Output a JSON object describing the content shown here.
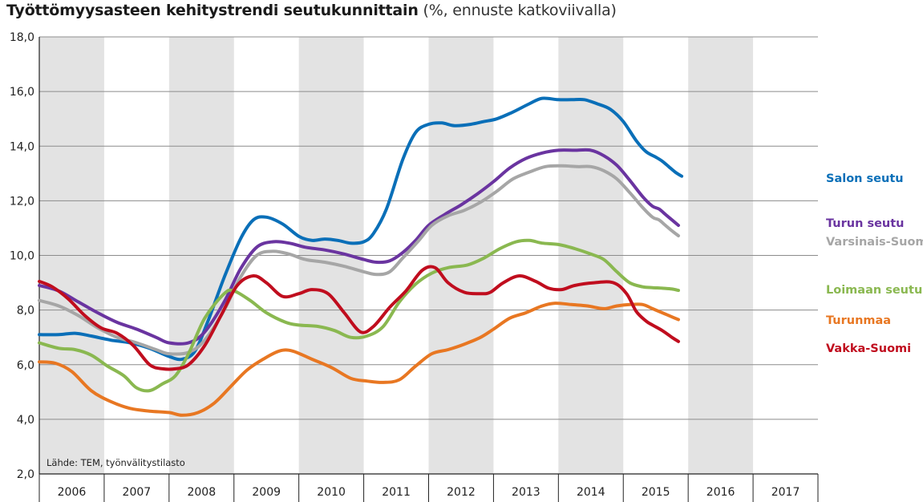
{
  "chart_data": {
    "type": "line",
    "title": "Työttömyysasteen kehitystrendi seutukunnittain",
    "subtitle": "(%, ennuste katkoviivalla)",
    "source": "Lähde: TEM, työnvälitystilasto",
    "ylim": [
      2,
      18
    ],
    "yticks": [
      "2,0",
      "4,0",
      "6,0",
      "8,0",
      "10,0",
      "12,0",
      "14,0",
      "16,0",
      "18,0"
    ],
    "ytick_values": [
      2,
      4,
      6,
      8,
      10,
      12,
      14,
      16,
      18
    ],
    "years": [
      "2006",
      "2007",
      "2008",
      "2009",
      "2010",
      "2011",
      "2012",
      "2013",
      "2014",
      "2015",
      "2016",
      "2017"
    ],
    "xlim": [
      2006.0,
      2018.0
    ],
    "forecast_from": 2017.45,
    "grid": true,
    "series": [
      {
        "name": "Salon seutu",
        "color": "#0a6fb8",
        "points": [
          [
            2006.0,
            7.1
          ],
          [
            2006.3,
            7.1
          ],
          [
            2006.55,
            7.15
          ],
          [
            2006.8,
            7.05
          ],
          [
            2007.1,
            6.9
          ],
          [
            2007.4,
            6.8
          ],
          [
            2007.7,
            6.6
          ],
          [
            2008.0,
            6.3
          ],
          [
            2008.2,
            6.2
          ],
          [
            2008.4,
            6.5
          ],
          [
            2008.6,
            7.6
          ],
          [
            2008.85,
            9.2
          ],
          [
            2009.1,
            10.6
          ],
          [
            2009.3,
            11.3
          ],
          [
            2009.5,
            11.4
          ],
          [
            2009.75,
            11.15
          ],
          [
            2010.0,
            10.7
          ],
          [
            2010.2,
            10.55
          ],
          [
            2010.4,
            10.6
          ],
          [
            2010.6,
            10.55
          ],
          [
            2010.8,
            10.45
          ],
          [
            2011.0,
            10.5
          ],
          [
            2011.15,
            10.8
          ],
          [
            2011.35,
            11.7
          ],
          [
            2011.6,
            13.5
          ],
          [
            2011.8,
            14.5
          ],
          [
            2012.0,
            14.8
          ],
          [
            2012.2,
            14.85
          ],
          [
            2012.4,
            14.75
          ],
          [
            2012.65,
            14.8
          ],
          [
            2012.85,
            14.9
          ],
          [
            2013.05,
            15.0
          ],
          [
            2013.3,
            15.25
          ],
          [
            2013.55,
            15.55
          ],
          [
            2013.75,
            15.75
          ],
          [
            2014.0,
            15.7
          ],
          [
            2014.2,
            15.7
          ],
          [
            2014.4,
            15.7
          ],
          [
            2014.6,
            15.55
          ],
          [
            2014.8,
            15.35
          ],
          [
            2015.0,
            14.9
          ],
          [
            2015.2,
            14.2
          ],
          [
            2015.35,
            13.8
          ],
          [
            2015.5,
            13.6
          ],
          [
            2015.6,
            13.45
          ],
          [
            2015.7,
            13.25
          ],
          [
            2015.8,
            13.05
          ],
          [
            2015.9,
            12.9
          ]
        ]
      },
      {
        "name": "Turun seutu",
        "color": "#6a34a0",
        "points": [
          [
            2006.0,
            8.9
          ],
          [
            2006.3,
            8.7
          ],
          [
            2006.6,
            8.3
          ],
          [
            2006.9,
            7.9
          ],
          [
            2007.2,
            7.55
          ],
          [
            2007.5,
            7.3
          ],
          [
            2007.8,
            7.0
          ],
          [
            2008.0,
            6.8
          ],
          [
            2008.3,
            6.8
          ],
          [
            2008.55,
            7.2
          ],
          [
            2008.85,
            8.3
          ],
          [
            2009.1,
            9.5
          ],
          [
            2009.35,
            10.3
          ],
          [
            2009.6,
            10.5
          ],
          [
            2009.85,
            10.45
          ],
          [
            2010.1,
            10.3
          ],
          [
            2010.4,
            10.2
          ],
          [
            2010.7,
            10.05
          ],
          [
            2011.0,
            9.85
          ],
          [
            2011.2,
            9.75
          ],
          [
            2011.4,
            9.8
          ],
          [
            2011.6,
            10.1
          ],
          [
            2011.8,
            10.55
          ],
          [
            2012.0,
            11.1
          ],
          [
            2012.25,
            11.5
          ],
          [
            2012.5,
            11.85
          ],
          [
            2012.75,
            12.25
          ],
          [
            2013.0,
            12.7
          ],
          [
            2013.25,
            13.2
          ],
          [
            2013.5,
            13.55
          ],
          [
            2013.75,
            13.75
          ],
          [
            2014.0,
            13.85
          ],
          [
            2014.25,
            13.85
          ],
          [
            2014.5,
            13.85
          ],
          [
            2014.7,
            13.65
          ],
          [
            2014.9,
            13.3
          ],
          [
            2015.1,
            12.75
          ],
          [
            2015.3,
            12.15
          ],
          [
            2015.45,
            11.8
          ],
          [
            2015.55,
            11.7
          ],
          [
            2015.65,
            11.5
          ],
          [
            2015.75,
            11.3
          ],
          [
            2015.85,
            11.1
          ]
        ]
      },
      {
        "name": "Varsinais-Suomi",
        "color": "#a6a6a6",
        "points": [
          [
            2006.0,
            8.35
          ],
          [
            2006.3,
            8.15
          ],
          [
            2006.6,
            7.8
          ],
          [
            2006.9,
            7.35
          ],
          [
            2007.2,
            7.0
          ],
          [
            2007.5,
            6.8
          ],
          [
            2007.8,
            6.55
          ],
          [
            2008.0,
            6.4
          ],
          [
            2008.3,
            6.45
          ],
          [
            2008.55,
            6.9
          ],
          [
            2008.85,
            8.0
          ],
          [
            2009.1,
            9.2
          ],
          [
            2009.35,
            10.0
          ],
          [
            2009.6,
            10.15
          ],
          [
            2009.85,
            10.05
          ],
          [
            2010.1,
            9.85
          ],
          [
            2010.4,
            9.75
          ],
          [
            2010.7,
            9.6
          ],
          [
            2011.0,
            9.4
          ],
          [
            2011.2,
            9.3
          ],
          [
            2011.4,
            9.4
          ],
          [
            2011.6,
            9.9
          ],
          [
            2011.85,
            10.55
          ],
          [
            2012.05,
            11.1
          ],
          [
            2012.3,
            11.45
          ],
          [
            2012.55,
            11.65
          ],
          [
            2012.8,
            11.95
          ],
          [
            2013.05,
            12.35
          ],
          [
            2013.3,
            12.8
          ],
          [
            2013.55,
            13.05
          ],
          [
            2013.8,
            13.25
          ],
          [
            2014.05,
            13.28
          ],
          [
            2014.3,
            13.25
          ],
          [
            2014.5,
            13.25
          ],
          [
            2014.7,
            13.1
          ],
          [
            2014.9,
            12.8
          ],
          [
            2015.1,
            12.3
          ],
          [
            2015.3,
            11.75
          ],
          [
            2015.45,
            11.4
          ],
          [
            2015.55,
            11.3
          ],
          [
            2015.65,
            11.1
          ],
          [
            2015.75,
            10.9
          ],
          [
            2015.85,
            10.72
          ]
        ]
      },
      {
        "name": "Loimaan seutu",
        "color": "#8ab850",
        "points": [
          [
            2006.0,
            6.8
          ],
          [
            2006.3,
            6.6
          ],
          [
            2006.55,
            6.55
          ],
          [
            2006.8,
            6.35
          ],
          [
            2007.05,
            5.95
          ],
          [
            2007.3,
            5.6
          ],
          [
            2007.5,
            5.15
          ],
          [
            2007.7,
            5.05
          ],
          [
            2007.9,
            5.3
          ],
          [
            2008.1,
            5.6
          ],
          [
            2008.3,
            6.4
          ],
          [
            2008.55,
            7.7
          ],
          [
            2008.85,
            8.6
          ],
          [
            2009.0,
            8.7
          ],
          [
            2009.25,
            8.35
          ],
          [
            2009.5,
            7.9
          ],
          [
            2009.8,
            7.55
          ],
          [
            2010.0,
            7.45
          ],
          [
            2010.3,
            7.4
          ],
          [
            2010.55,
            7.25
          ],
          [
            2010.8,
            7.0
          ],
          [
            2011.05,
            7.05
          ],
          [
            2011.3,
            7.4
          ],
          [
            2011.55,
            8.3
          ],
          [
            2011.8,
            8.95
          ],
          [
            2012.05,
            9.35
          ],
          [
            2012.3,
            9.55
          ],
          [
            2012.6,
            9.65
          ],
          [
            2012.85,
            9.9
          ],
          [
            2013.1,
            10.25
          ],
          [
            2013.35,
            10.5
          ],
          [
            2013.55,
            10.55
          ],
          [
            2013.75,
            10.45
          ],
          [
            2014.0,
            10.4
          ],
          [
            2014.25,
            10.25
          ],
          [
            2014.5,
            10.05
          ],
          [
            2014.7,
            9.85
          ],
          [
            2014.9,
            9.4
          ],
          [
            2015.1,
            9.0
          ],
          [
            2015.3,
            8.85
          ],
          [
            2015.45,
            8.82
          ],
          [
            2015.6,
            8.8
          ],
          [
            2015.75,
            8.77
          ],
          [
            2015.85,
            8.72
          ]
        ]
      },
      {
        "name": "Turunmaa",
        "color": "#e87722",
        "points": [
          [
            2006.0,
            6.1
          ],
          [
            2006.25,
            6.05
          ],
          [
            2006.5,
            5.75
          ],
          [
            2006.8,
            5.05
          ],
          [
            2007.1,
            4.65
          ],
          [
            2007.4,
            4.4
          ],
          [
            2007.7,
            4.3
          ],
          [
            2008.0,
            4.25
          ],
          [
            2008.2,
            4.15
          ],
          [
            2008.45,
            4.25
          ],
          [
            2008.7,
            4.6
          ],
          [
            2008.95,
            5.2
          ],
          [
            2009.2,
            5.8
          ],
          [
            2009.45,
            6.2
          ],
          [
            2009.7,
            6.5
          ],
          [
            2009.9,
            6.5
          ],
          [
            2010.2,
            6.2
          ],
          [
            2010.5,
            5.9
          ],
          [
            2010.8,
            5.5
          ],
          [
            2011.05,
            5.4
          ],
          [
            2011.3,
            5.35
          ],
          [
            2011.55,
            5.45
          ],
          [
            2011.8,
            5.95
          ],
          [
            2012.05,
            6.4
          ],
          [
            2012.3,
            6.55
          ],
          [
            2012.55,
            6.75
          ],
          [
            2012.8,
            7.0
          ],
          [
            2013.0,
            7.3
          ],
          [
            2013.25,
            7.7
          ],
          [
            2013.5,
            7.9
          ],
          [
            2013.75,
            8.15
          ],
          [
            2013.95,
            8.25
          ],
          [
            2014.2,
            8.2
          ],
          [
            2014.45,
            8.15
          ],
          [
            2014.7,
            8.05
          ],
          [
            2014.9,
            8.15
          ],
          [
            2015.1,
            8.2
          ],
          [
            2015.3,
            8.2
          ],
          [
            2015.45,
            8.05
          ],
          [
            2015.6,
            7.9
          ],
          [
            2015.7,
            7.8
          ],
          [
            2015.85,
            7.65
          ]
        ]
      },
      {
        "name": "Vakka-Suomi",
        "color": "#c00d1e",
        "points": [
          [
            2006.0,
            9.05
          ],
          [
            2006.2,
            8.85
          ],
          [
            2006.45,
            8.4
          ],
          [
            2006.7,
            7.8
          ],
          [
            2006.95,
            7.35
          ],
          [
            2007.2,
            7.15
          ],
          [
            2007.45,
            6.7
          ],
          [
            2007.7,
            6.0
          ],
          [
            2007.9,
            5.85
          ],
          [
            2008.1,
            5.85
          ],
          [
            2008.3,
            6.0
          ],
          [
            2008.55,
            6.7
          ],
          [
            2008.8,
            7.8
          ],
          [
            2009.05,
            8.9
          ],
          [
            2009.3,
            9.25
          ],
          [
            2009.5,
            9.0
          ],
          [
            2009.75,
            8.5
          ],
          [
            2010.0,
            8.6
          ],
          [
            2010.2,
            8.75
          ],
          [
            2010.45,
            8.6
          ],
          [
            2010.7,
            7.9
          ],
          [
            2010.95,
            7.2
          ],
          [
            2011.15,
            7.4
          ],
          [
            2011.4,
            8.1
          ],
          [
            2011.65,
            8.7
          ],
          [
            2011.9,
            9.45
          ],
          [
            2012.1,
            9.55
          ],
          [
            2012.3,
            9.0
          ],
          [
            2012.55,
            8.65
          ],
          [
            2012.8,
            8.6
          ],
          [
            2012.95,
            8.65
          ],
          [
            2013.15,
            9.0
          ],
          [
            2013.4,
            9.25
          ],
          [
            2013.65,
            9.05
          ],
          [
            2013.85,
            8.8
          ],
          [
            2014.05,
            8.75
          ],
          [
            2014.25,
            8.9
          ],
          [
            2014.55,
            9.0
          ],
          [
            2014.85,
            9.0
          ],
          [
            2015.05,
            8.6
          ],
          [
            2015.2,
            7.95
          ],
          [
            2015.35,
            7.6
          ],
          [
            2015.45,
            7.45
          ],
          [
            2015.6,
            7.25
          ],
          [
            2015.75,
            7.0
          ],
          [
            2015.85,
            6.85
          ]
        ]
      }
    ]
  }
}
